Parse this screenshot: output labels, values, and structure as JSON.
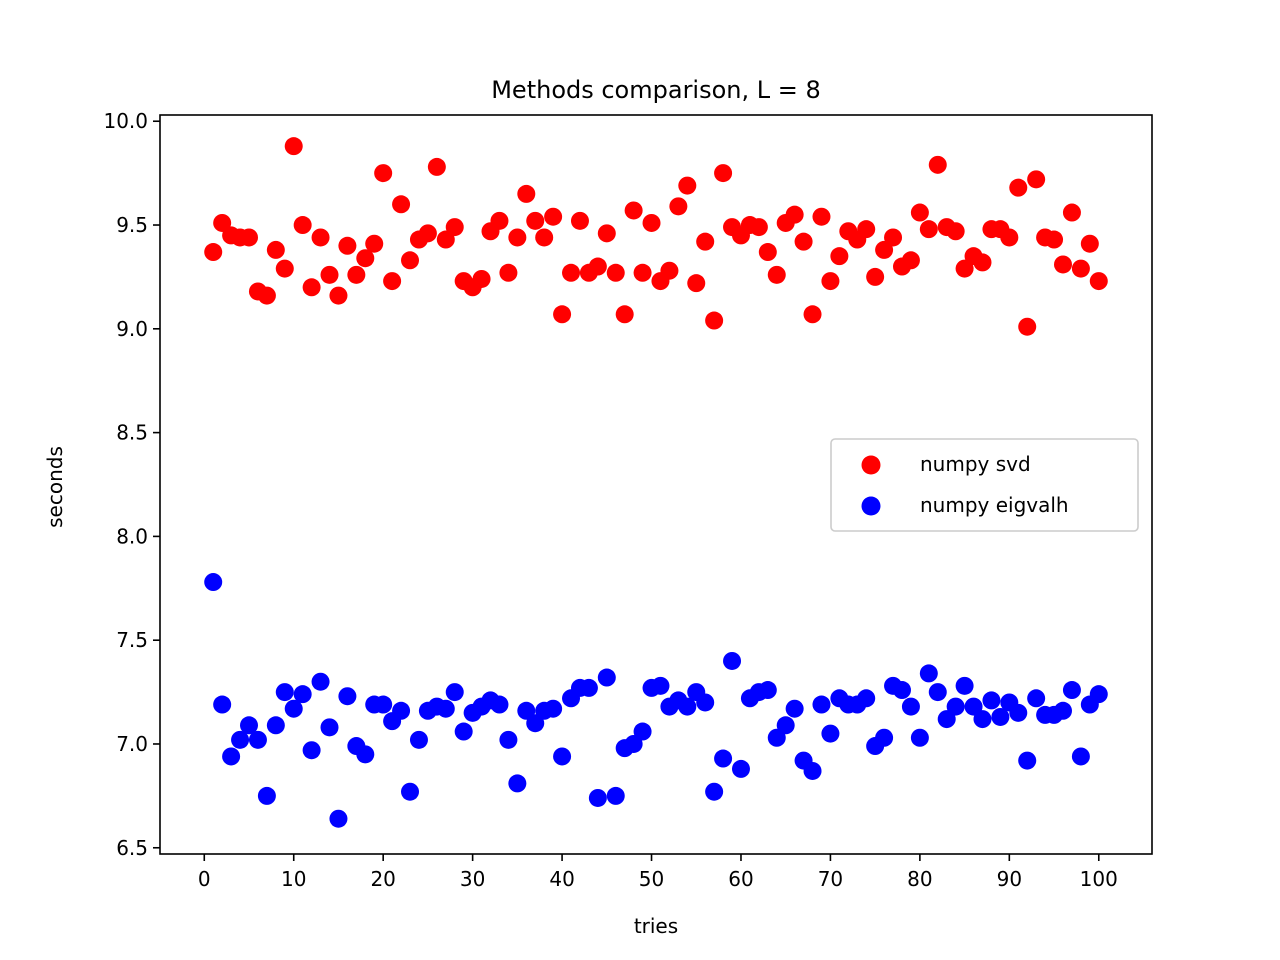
{
  "chart_data": {
    "type": "scatter",
    "title": "Methods comparison, L = 8",
    "xlabel": "tries",
    "ylabel": "seconds",
    "xlim": [
      -4.95,
      105.95
    ],
    "ylim": [
      6.47,
      10.03
    ],
    "xticks": [
      0,
      10,
      20,
      30,
      40,
      50,
      60,
      70,
      80,
      90,
      100
    ],
    "xtick_labels": [
      "0",
      "10",
      "20",
      "30",
      "40",
      "50",
      "60",
      "70",
      "80",
      "90",
      "100"
    ],
    "yticks": [
      6.5,
      7.0,
      7.5,
      8.0,
      8.5,
      9.0,
      9.5,
      10.0
    ],
    "ytick_labels": [
      "6.5",
      "7.0",
      "7.5",
      "8.0",
      "8.5",
      "9.0",
      "9.5",
      "10.0"
    ],
    "grid": false,
    "legend_position": "center-right",
    "x": [
      1,
      2,
      3,
      4,
      5,
      6,
      7,
      8,
      9,
      10,
      11,
      12,
      13,
      14,
      15,
      16,
      17,
      18,
      19,
      20,
      21,
      22,
      23,
      24,
      25,
      26,
      27,
      28,
      29,
      30,
      31,
      32,
      33,
      34,
      35,
      36,
      37,
      38,
      39,
      40,
      41,
      42,
      43,
      44,
      45,
      46,
      47,
      48,
      49,
      50,
      51,
      52,
      53,
      54,
      55,
      56,
      57,
      58,
      59,
      60,
      61,
      62,
      63,
      64,
      65,
      66,
      67,
      68,
      69,
      70,
      71,
      72,
      73,
      74,
      75,
      76,
      77,
      78,
      79,
      80,
      81,
      82,
      83,
      84,
      85,
      86,
      87,
      88,
      89,
      90,
      91,
      92,
      93,
      94,
      95,
      96,
      97,
      98,
      99,
      100
    ],
    "series": [
      {
        "name": "numpy svd",
        "color": "#ff0000",
        "values": [
          9.37,
          9.51,
          9.45,
          9.44,
          9.44,
          9.18,
          9.16,
          9.38,
          9.29,
          9.88,
          9.5,
          9.2,
          9.44,
          9.26,
          9.16,
          9.4,
          9.26,
          9.34,
          9.41,
          9.75,
          9.23,
          9.6,
          9.33,
          9.43,
          9.46,
          9.78,
          9.43,
          9.49,
          9.23,
          9.2,
          9.24,
          9.47,
          9.52,
          9.27,
          9.44,
          9.65,
          9.52,
          9.44,
          9.54,
          9.07,
          9.27,
          9.52,
          9.27,
          9.3,
          9.46,
          9.27,
          9.07,
          9.57,
          9.27,
          9.51,
          9.23,
          9.28,
          9.59,
          9.69,
          9.22,
          9.42,
          9.04,
          9.75,
          9.49,
          9.45,
          9.5,
          9.49,
          9.37,
          9.26,
          9.51,
          9.55,
          9.42,
          9.07,
          9.54,
          9.23,
          9.35,
          9.47,
          9.43,
          9.48,
          9.25,
          9.38,
          9.44,
          9.3,
          9.33,
          9.56,
          9.48,
          9.79,
          9.49,
          9.47,
          9.29,
          9.35,
          9.32,
          9.48,
          9.48,
          9.44,
          9.68,
          9.01,
          9.72,
          9.44,
          9.43,
          9.31,
          9.56,
          9.29,
          9.41,
          9.23
        ]
      },
      {
        "name": "numpy eigvalh",
        "color": "#0000ff",
        "values": [
          7.78,
          7.19,
          6.94,
          7.02,
          7.09,
          7.02,
          6.75,
          7.09,
          7.25,
          7.17,
          7.24,
          6.97,
          7.3,
          7.08,
          6.64,
          7.23,
          6.99,
          6.95,
          7.19,
          7.19,
          7.11,
          7.16,
          6.77,
          7.02,
          7.16,
          7.18,
          7.17,
          7.25,
          7.06,
          7.15,
          7.18,
          7.21,
          7.19,
          7.02,
          6.81,
          7.16,
          7.1,
          7.16,
          7.17,
          6.94,
          7.22,
          7.27,
          7.27,
          6.74,
          7.32,
          6.75,
          6.98,
          7.0,
          7.06,
          7.27,
          7.28,
          7.18,
          7.21,
          7.18,
          7.25,
          7.2,
          6.77,
          6.93,
          7.4,
          6.88,
          7.22,
          7.25,
          7.26,
          7.03,
          7.09,
          7.17,
          6.92,
          6.87,
          7.19,
          7.05,
          7.22,
          7.19,
          7.19,
          7.22,
          6.99,
          7.03,
          7.28,
          7.26,
          7.18,
          7.03,
          7.34,
          7.25,
          7.12,
          7.18,
          7.28,
          7.18,
          7.12,
          7.21,
          7.13,
          7.2,
          7.15,
          6.92,
          7.22,
          7.14,
          7.14,
          7.16,
          7.26,
          6.94,
          7.19,
          7.24
        ]
      }
    ]
  }
}
